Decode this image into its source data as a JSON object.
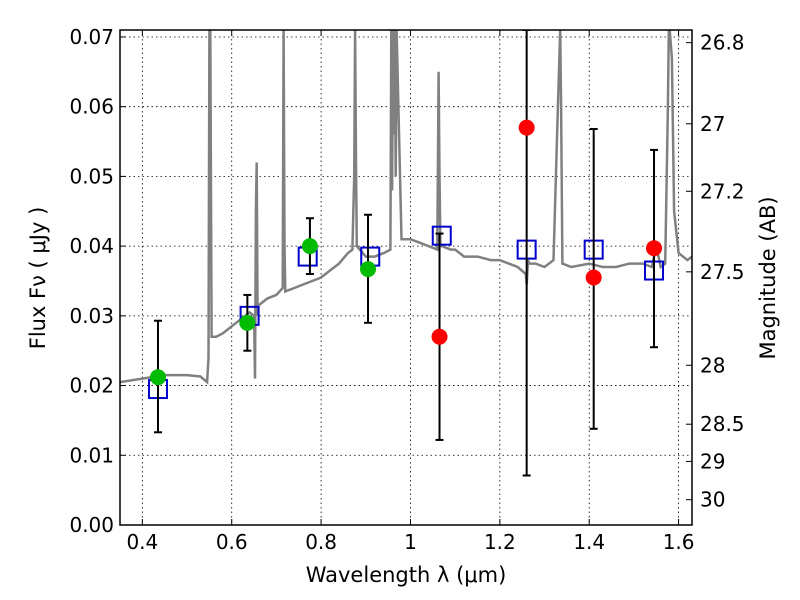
{
  "chart_data": {
    "type": "scatter",
    "xlabel": "Wavelength  λ (μm)",
    "ylabel": "Flux  Fν  ( μJy )",
    "y2label": "Magnitude (AB)",
    "xlim": [
      0.35,
      1.63
    ],
    "ylim": [
      0.0,
      0.071
    ],
    "grid": true,
    "x_ticks": [
      {
        "v": 0.4,
        "label": "0.4"
      },
      {
        "v": 0.6,
        "label": "0.6"
      },
      {
        "v": 0.8,
        "label": "0.8"
      },
      {
        "v": 1.0,
        "label": "1"
      },
      {
        "v": 1.2,
        "label": "1.2"
      },
      {
        "v": 1.4,
        "label": "1.4"
      },
      {
        "v": 1.6,
        "label": "1.6"
      }
    ],
    "y_ticks": [
      {
        "v": 0.0,
        "label": "0.00"
      },
      {
        "v": 0.01,
        "label": "0.01"
      },
      {
        "v": 0.02,
        "label": "0.02"
      },
      {
        "v": 0.03,
        "label": "0.03"
      },
      {
        "v": 0.04,
        "label": "0.04"
      },
      {
        "v": 0.05,
        "label": "0.05"
      },
      {
        "v": 0.06,
        "label": "0.06"
      },
      {
        "v": 0.07,
        "label": "0.07"
      }
    ],
    "mag_ticks": [
      {
        "mag": 26.8,
        "label": "26.8"
      },
      {
        "mag": 27.0,
        "label": "27"
      },
      {
        "mag": 27.2,
        "label": "27.2"
      },
      {
        "mag": 27.5,
        "label": "27.5"
      },
      {
        "mag": 28.0,
        "label": "28"
      },
      {
        "mag": 28.5,
        "label": "28.5"
      },
      {
        "mag": 29.0,
        "label": "29"
      },
      {
        "mag": 30.0,
        "label": "30"
      }
    ],
    "model_spectrum": {
      "color": "#808080",
      "x": [
        0.35,
        0.4,
        0.45,
        0.5,
        0.53,
        0.545,
        0.548,
        0.55,
        0.552,
        0.555,
        0.565,
        0.58,
        0.6,
        0.62,
        0.64,
        0.65,
        0.652,
        0.654,
        0.656,
        0.658,
        0.66,
        0.68,
        0.7,
        0.714,
        0.716,
        0.718,
        0.72,
        0.74,
        0.76,
        0.78,
        0.8,
        0.82,
        0.84,
        0.86,
        0.87,
        0.874,
        0.876,
        0.878,
        0.88,
        0.9,
        0.92,
        0.94,
        0.955,
        0.957,
        0.959,
        0.961,
        0.963,
        0.965,
        0.967,
        0.969,
        0.98,
        1.0,
        1.02,
        1.04,
        1.06,
        1.063,
        1.065,
        1.067,
        1.07,
        1.09,
        1.1,
        1.12,
        1.15,
        1.18,
        1.2,
        1.22,
        1.24,
        1.258,
        1.26,
        1.263,
        1.266,
        1.27,
        1.28,
        1.3,
        1.32,
        1.33,
        1.335,
        1.337,
        1.34,
        1.36,
        1.4,
        1.43,
        1.46,
        1.49,
        1.52,
        1.54,
        1.55,
        1.56,
        1.57,
        1.576,
        1.578,
        1.58,
        1.585,
        1.59,
        1.6,
        1.62,
        1.63
      ],
      "y": [
        0.0205,
        0.021,
        0.0215,
        0.0215,
        0.0213,
        0.0205,
        0.024,
        0.071,
        0.071,
        0.027,
        0.027,
        0.0275,
        0.0285,
        0.0295,
        0.0305,
        0.03,
        0.021,
        0.045,
        0.052,
        0.03,
        0.0315,
        0.0325,
        0.033,
        0.034,
        0.071,
        0.04,
        0.0335,
        0.034,
        0.0345,
        0.035,
        0.0355,
        0.0365,
        0.0375,
        0.039,
        0.0395,
        0.05,
        0.071,
        0.052,
        0.04,
        0.0385,
        0.0385,
        0.039,
        0.0395,
        0.071,
        0.048,
        0.071,
        0.056,
        0.071,
        0.05,
        0.071,
        0.041,
        0.041,
        0.0405,
        0.04,
        0.0395,
        0.065,
        0.05,
        0.04,
        0.04,
        0.0395,
        0.0395,
        0.0385,
        0.0385,
        0.038,
        0.038,
        0.0375,
        0.037,
        0.036,
        0.0345,
        0.038,
        0.0375,
        0.0375,
        0.0375,
        0.037,
        0.038,
        0.06,
        0.071,
        0.06,
        0.0375,
        0.037,
        0.0375,
        0.037,
        0.037,
        0.0375,
        0.0375,
        0.037,
        0.04,
        0.037,
        0.0375,
        0.06,
        0.071,
        0.071,
        0.067,
        0.045,
        0.039,
        0.038,
        0.0385
      ]
    },
    "series": [
      {
        "marker": "square",
        "color": "#0000cc",
        "x": [
          0.435,
          0.64,
          0.77,
          0.91,
          1.07,
          1.26,
          1.41,
          1.545
        ],
        "y": [
          0.0195,
          0.03,
          0.0385,
          0.0385,
          0.0415,
          0.0395,
          0.0395,
          0.0365
        ]
      },
      {
        "marker": "circle",
        "color": "#00bb00",
        "x": [
          0.435,
          0.635,
          0.775,
          0.905
        ],
        "y": [
          0.0212,
          0.029,
          0.04,
          0.0367
        ],
        "err_low": [
          0.0133,
          0.025,
          0.036,
          0.029
        ],
        "err_high": [
          0.0293,
          0.033,
          0.044,
          0.0445
        ]
      },
      {
        "marker": "circle",
        "color": "#ff0000",
        "x": [
          1.065,
          1.26,
          1.41,
          1.545
        ],
        "y": [
          0.027,
          0.057,
          0.0355,
          0.0397
        ],
        "err_low": [
          0.0122,
          0.0071,
          0.0138,
          0.0255
        ],
        "err_high": [
          0.0418,
          0.071,
          0.0568,
          0.0538
        ]
      }
    ]
  }
}
